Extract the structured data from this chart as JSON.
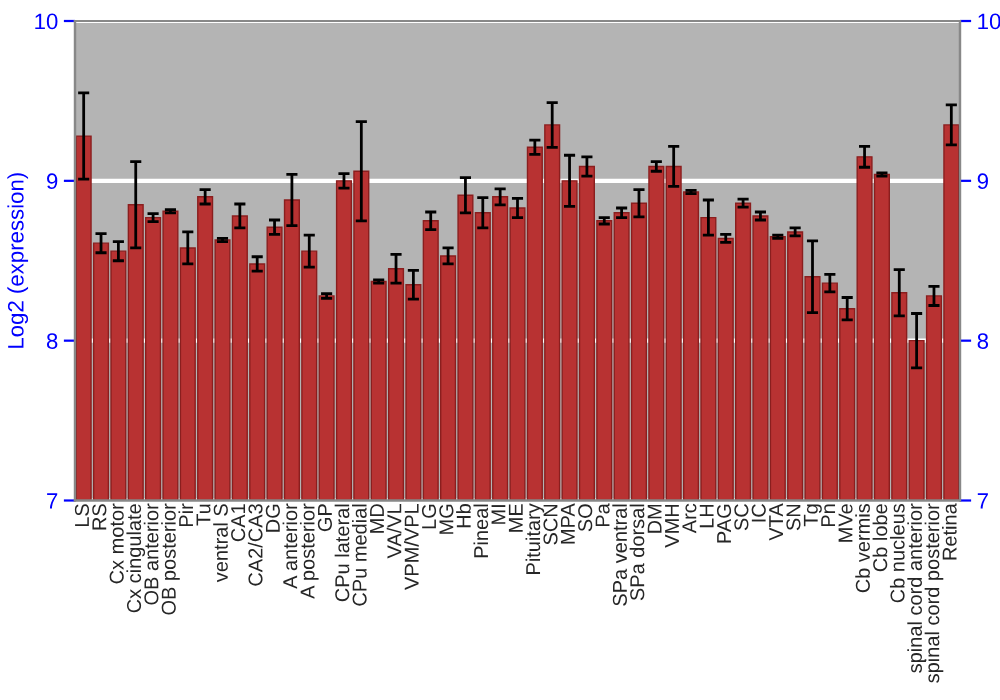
{
  "chart_data": {
    "type": "bar",
    "ylabel": "Log2 (expression)",
    "categories": [
      "LS",
      "RS",
      "Cx motor",
      "Cx cingulate",
      "OB anterior",
      "OB posterior",
      "Pir",
      "Tu",
      "ventral S",
      "CA1",
      "CA2/CA3",
      "DG",
      "A anterior",
      "A posterior",
      "GP",
      "CPu lateral",
      "CPu medial",
      "MD",
      "VA/VL",
      "VPM/VPL",
      "LG",
      "MG",
      "Hb",
      "Pineal",
      "MI",
      "ME",
      "Pituitary",
      "SCN",
      "MPA",
      "SO",
      "Pa",
      "SPa ventral",
      "SPa dorsal",
      "DM",
      "VMH",
      "Arc",
      "LH",
      "PAG",
      "SC",
      "IC",
      "VTA",
      "SN",
      "Tg",
      "Pn",
      "MVe",
      "Cb vermis",
      "Cb lobe",
      "Cb nucleus",
      "spinal cord anterior",
      "spinal cord posterior",
      "Retina"
    ],
    "values": [
      9.28,
      8.61,
      8.56,
      8.85,
      8.77,
      8.81,
      8.58,
      8.9,
      8.63,
      8.78,
      8.48,
      8.71,
      8.88,
      8.56,
      8.28,
      9.0,
      9.06,
      8.37,
      8.45,
      8.35,
      8.75,
      8.53,
      8.91,
      8.8,
      8.9,
      8.83,
      9.21,
      9.35,
      9.0,
      9.09,
      8.75,
      8.8,
      8.86,
      9.09,
      9.09,
      8.93,
      8.77,
      8.64,
      8.86,
      8.78,
      8.65,
      8.68,
      8.4,
      8.36,
      8.2,
      9.15,
      9.04,
      8.3,
      8.0,
      8.28,
      9.35
    ],
    "errors": [
      0.27,
      0.06,
      0.06,
      0.27,
      0.025,
      0.01,
      0.1,
      0.045,
      0.01,
      0.075,
      0.045,
      0.045,
      0.16,
      0.1,
      0.015,
      0.045,
      0.31,
      0.01,
      0.09,
      0.09,
      0.055,
      0.05,
      0.11,
      0.095,
      0.05,
      0.06,
      0.045,
      0.14,
      0.16,
      0.06,
      0.02,
      0.03,
      0.085,
      0.03,
      0.125,
      0.01,
      0.11,
      0.025,
      0.025,
      0.025,
      0.01,
      0.025,
      0.225,
      0.055,
      0.07,
      0.065,
      0.01,
      0.145,
      0.17,
      0.06,
      0.125
    ],
    "color": "#b83232",
    "ylim": [
      7,
      10
    ],
    "yticks": [
      7,
      8,
      9,
      10
    ],
    "y2lim": [
      7,
      10
    ],
    "y2ticks": [
      7,
      8,
      9,
      10
    ],
    "grid": "y"
  }
}
